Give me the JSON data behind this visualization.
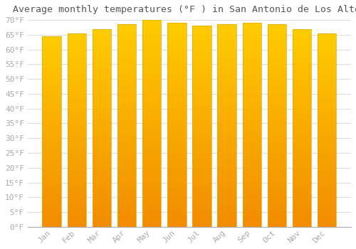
{
  "title": "Average monthly temperatures (°F ) in San Antonio de Los Altos",
  "months": [
    "Jan",
    "Feb",
    "Mar",
    "Apr",
    "May",
    "Jun",
    "Jul",
    "Aug",
    "Sep",
    "Oct",
    "Nov",
    "Dec"
  ],
  "values": [
    64.5,
    65.5,
    67.0,
    68.5,
    70.0,
    69.0,
    68.0,
    68.5,
    69.0,
    68.5,
    67.0,
    65.5
  ],
  "bar_color_top": "#FFB300",
  "bar_color_bottom": "#FF8C00",
  "bar_edge_color": "#DDAA00",
  "background_color": "#FFFFFF",
  "plot_bg_color": "#FFFFFF",
  "grid_color": "#DDDDDD",
  "ylim": [
    0,
    70
  ],
  "ytick_step": 5,
  "title_fontsize": 9.5,
  "tick_fontsize": 8,
  "font_color": "#AAAAAA",
  "title_color": "#555555"
}
